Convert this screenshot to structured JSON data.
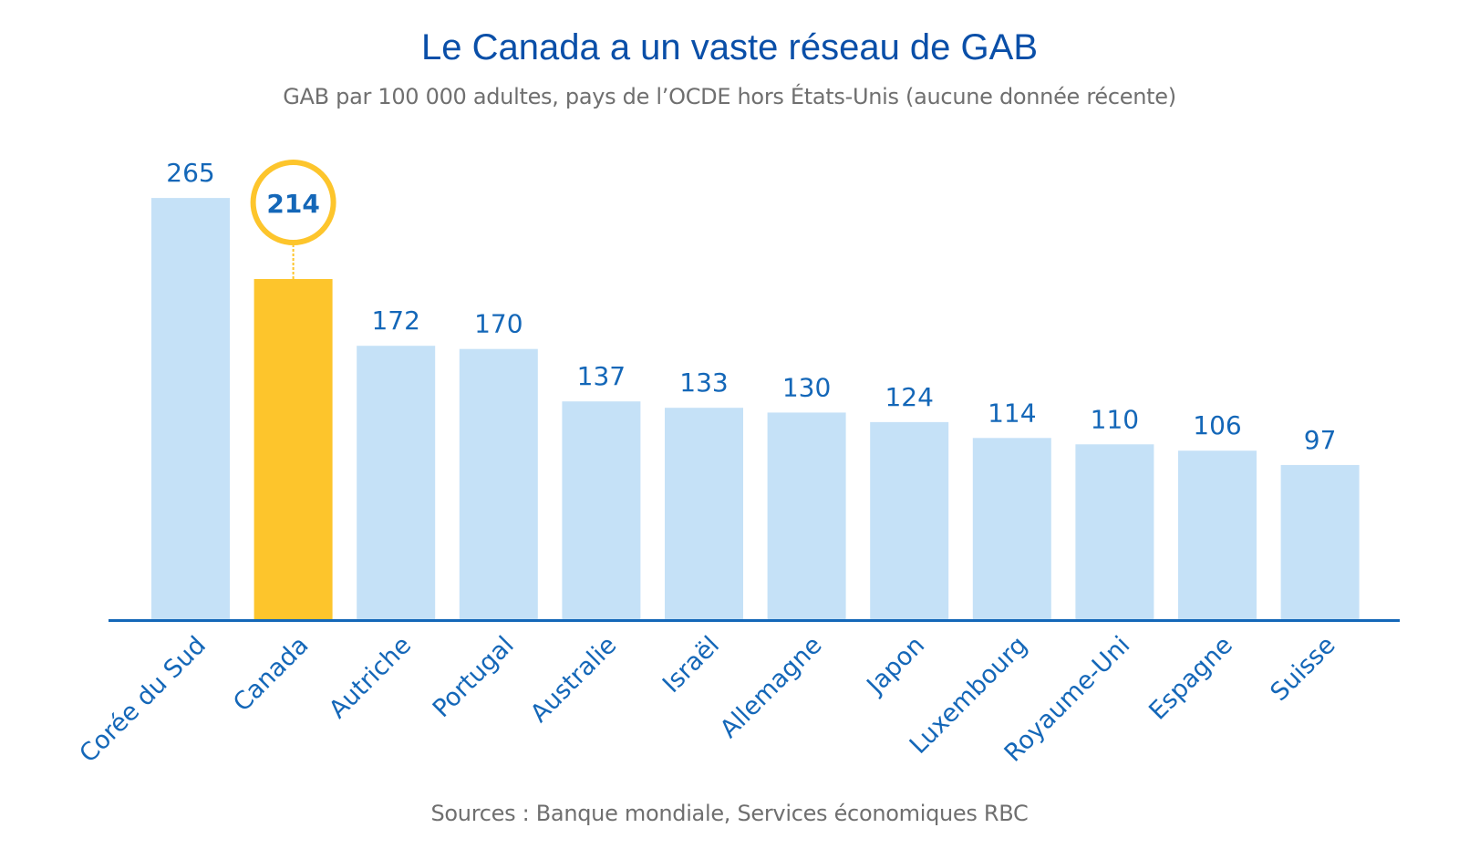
{
  "chart_data": {
    "type": "bar",
    "title": "Le Canada a un vaste réseau de GAB",
    "subtitle": "GAB par 100 000 adultes, pays de l’OCDE hors États-Unis (aucune donnée récente)",
    "source": "Sources : Banque mondiale, Services économiques RBC",
    "xlabel": "",
    "ylabel": "",
    "ylim": [
      0,
      280
    ],
    "grid": false,
    "legend": "none",
    "categories": [
      "Corée du Sud",
      "Canada",
      "Autriche",
      "Portugal",
      "Australie",
      "Israël",
      "Allemagne",
      "Japon",
      "Luxembourg",
      "Royaume-Uni",
      "Espagne",
      "Suisse"
    ],
    "values": [
      265,
      214,
      172,
      170,
      137,
      133,
      130,
      124,
      114,
      110,
      106,
      97
    ],
    "highlight": {
      "category": "Canada",
      "value": 214
    },
    "colors": {
      "bar": "#c5e1f7",
      "highlight": "#fdc52c",
      "axis": "#1467b8",
      "labels": "#1467b8",
      "title": "#0a4fa8",
      "subtitle": "#6f6f6f"
    }
  }
}
